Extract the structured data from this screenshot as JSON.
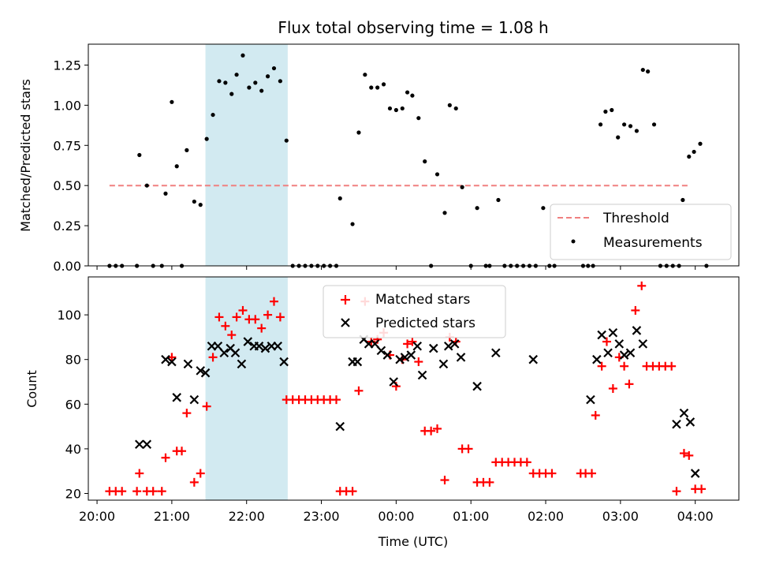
{
  "chart_data": [
    {
      "type": "scatter",
      "title": "Flux total observing time = 1.08 h",
      "xlabel": "",
      "ylabel": "Matched/Predicted stars",
      "ylim": [
        0,
        1.38
      ],
      "yticks": [
        "0.00",
        "0.25",
        "0.50",
        "0.75",
        "1.00",
        "1.25"
      ],
      "ytick_values": [
        0,
        0.25,
        0.5,
        0.75,
        1.0,
        1.25
      ],
      "threshold": {
        "name": "Threshold",
        "value": 0.5,
        "x_range": [
          "20:10",
          "03:55"
        ],
        "color": "#f08080"
      },
      "highlight_span": {
        "x_range": [
          "21:27",
          "22:33"
        ],
        "color": "#add8e6"
      },
      "legend": {
        "placement": "lower-right",
        "entries": [
          "Threshold",
          "Measurements"
        ]
      },
      "series": [
        {
          "name": "Measurements",
          "color": "#000000",
          "marker": "dot",
          "points": [
            [
              "20:10",
              0
            ],
            [
              "20:15",
              0
            ],
            [
              "20:20",
              0
            ],
            [
              "20:32",
              0
            ],
            [
              "20:34",
              0.69
            ],
            [
              "20:40",
              0.5
            ],
            [
              "20:45",
              0
            ],
            [
              "20:52",
              0
            ],
            [
              "20:55",
              0.45
            ],
            [
              "21:00",
              1.02
            ],
            [
              "21:04",
              0.62
            ],
            [
              "21:08",
              0
            ],
            [
              "21:12",
              0.72
            ],
            [
              "21:18",
              0.4
            ],
            [
              "21:23",
              0.38
            ],
            [
              "21:28",
              0.79
            ],
            [
              "21:33",
              0.94
            ],
            [
              "21:38",
              1.15
            ],
            [
              "21:43",
              1.14
            ],
            [
              "21:48",
              1.07
            ],
            [
              "21:52",
              1.19
            ],
            [
              "21:57",
              1.31
            ],
            [
              "22:02",
              1.11
            ],
            [
              "22:07",
              1.14
            ],
            [
              "22:12",
              1.09
            ],
            [
              "22:17",
              1.18
            ],
            [
              "22:22",
              1.23
            ],
            [
              "22:27",
              1.15
            ],
            [
              "22:32",
              0.78
            ],
            [
              "22:37",
              0
            ],
            [
              "22:42",
              0
            ],
            [
              "22:47",
              0
            ],
            [
              "22:52",
              0
            ],
            [
              "22:57",
              0
            ],
            [
              "23:02",
              0
            ],
            [
              "23:07",
              0
            ],
            [
              "23:12",
              0
            ],
            [
              "23:15",
              0.42
            ],
            [
              "23:25",
              0.26
            ],
            [
              "23:30",
              0.83
            ],
            [
              "23:35",
              1.19
            ],
            [
              "23:40",
              1.11
            ],
            [
              "23:45",
              1.11
            ],
            [
              "23:50",
              1.13
            ],
            [
              "23:55",
              0.98
            ],
            [
              "00:00",
              0.97
            ],
            [
              "00:05",
              0.98
            ],
            [
              "00:09",
              1.08
            ],
            [
              "00:13",
              1.06
            ],
            [
              "00:18",
              0.92
            ],
            [
              "00:23",
              0.65
            ],
            [
              "00:28",
              0
            ],
            [
              "00:33",
              0.57
            ],
            [
              "00:39",
              0.33
            ],
            [
              "00:43",
              1.0
            ],
            [
              "00:48",
              0.98
            ],
            [
              "00:53",
              0.49
            ],
            [
              "01:00",
              0
            ],
            [
              "01:05",
              0.36
            ],
            [
              "01:12",
              0
            ],
            [
              "01:15",
              0
            ],
            [
              "01:22",
              0.41
            ],
            [
              "01:27",
              0
            ],
            [
              "01:32",
              0
            ],
            [
              "01:37",
              0
            ],
            [
              "01:42",
              0
            ],
            [
              "01:47",
              0
            ],
            [
              "01:52",
              0
            ],
            [
              "01:58",
              0.36
            ],
            [
              "02:03",
              0
            ],
            [
              "02:07",
              0
            ],
            [
              "02:30",
              0
            ],
            [
              "02:34",
              0
            ],
            [
              "02:38",
              0
            ],
            [
              "02:44",
              0.88
            ],
            [
              "02:48",
              0.96
            ],
            [
              "02:53",
              0.97
            ],
            [
              "02:58",
              0.8
            ],
            [
              "03:03",
              0.88
            ],
            [
              "03:08",
              0.87
            ],
            [
              "03:13",
              0.84
            ],
            [
              "03:18",
              1.22
            ],
            [
              "03:22",
              1.21
            ],
            [
              "03:27",
              0.88
            ],
            [
              "03:32",
              0
            ],
            [
              "03:37",
              0
            ],
            [
              "03:42",
              0
            ],
            [
              "03:47",
              0
            ],
            [
              "03:50",
              0.41
            ],
            [
              "03:55",
              0.68
            ],
            [
              "03:59",
              0.71
            ],
            [
              "04:04",
              0.76
            ],
            [
              "04:09",
              0
            ]
          ]
        }
      ]
    },
    {
      "type": "scatter",
      "title": "",
      "xlabel": "Time (UTC)",
      "ylabel": "Count",
      "ylim": [
        17,
        117
      ],
      "yticks": [
        "20",
        "40",
        "60",
        "80",
        "100"
      ],
      "ytick_values": [
        20,
        40,
        60,
        80,
        100
      ],
      "xticks": [
        "20:00",
        "21:00",
        "22:00",
        "23:00",
        "00:00",
        "01:00",
        "02:00",
        "03:00",
        "04:00"
      ],
      "x_range": [
        "19:53",
        "04:35"
      ],
      "highlight_span": {
        "x_range": [
          "21:27",
          "22:33"
        ],
        "color": "#add8e6"
      },
      "legend": {
        "placement": "upper-center",
        "entries": [
          "Matched stars",
          "Predicted stars"
        ]
      },
      "series": [
        {
          "name": "Matched stars",
          "color": "#ff0000",
          "marker": "plus",
          "points": [
            [
              "20:10",
              21
            ],
            [
              "20:15",
              21
            ],
            [
              "20:20",
              21
            ],
            [
              "20:32",
              21
            ],
            [
              "20:34",
              29
            ],
            [
              "20:40",
              21
            ],
            [
              "20:45",
              21
            ],
            [
              "20:52",
              21
            ],
            [
              "20:55",
              36
            ],
            [
              "21:00",
              81
            ],
            [
              "21:04",
              39
            ],
            [
              "21:08",
              39
            ],
            [
              "21:12",
              56
            ],
            [
              "21:18",
              25
            ],
            [
              "21:23",
              29
            ],
            [
              "21:28",
              59
            ],
            [
              "21:33",
              81
            ],
            [
              "21:38",
              99
            ],
            [
              "21:43",
              95
            ],
            [
              "21:48",
              91
            ],
            [
              "21:52",
              99
            ],
            [
              "21:57",
              102
            ],
            [
              "22:02",
              98
            ],
            [
              "22:07",
              98
            ],
            [
              "22:12",
              94
            ],
            [
              "22:17",
              100
            ],
            [
              "22:22",
              106
            ],
            [
              "22:27",
              99
            ],
            [
              "22:32",
              62
            ],
            [
              "22:37",
              62
            ],
            [
              "22:42",
              62
            ],
            [
              "22:47",
              62
            ],
            [
              "22:52",
              62
            ],
            [
              "22:57",
              62
            ],
            [
              "23:02",
              62
            ],
            [
              "23:07",
              62
            ],
            [
              "23:12",
              62
            ],
            [
              "23:15",
              21
            ],
            [
              "23:20",
              21
            ],
            [
              "23:25",
              21
            ],
            [
              "23:30",
              66
            ],
            [
              "23:35",
              106
            ],
            [
              "23:40",
              88
            ],
            [
              "23:45",
              89
            ],
            [
              "23:50",
              92
            ],
            [
              "23:55",
              82
            ],
            [
              "00:00",
              68
            ],
            [
              "00:05",
              80
            ],
            [
              "00:09",
              87
            ],
            [
              "00:13",
              88
            ],
            [
              "00:18",
              79
            ],
            [
              "00:23",
              48
            ],
            [
              "00:28",
              48
            ],
            [
              "00:33",
              49
            ],
            [
              "00:39",
              26
            ],
            [
              "00:43",
              90
            ],
            [
              "00:48",
              88
            ],
            [
              "00:53",
              40
            ],
            [
              "00:58",
              40
            ],
            [
              "01:05",
              25
            ],
            [
              "01:10",
              25
            ],
            [
              "01:15",
              25
            ],
            [
              "01:20",
              34
            ],
            [
              "01:25",
              34
            ],
            [
              "01:30",
              34
            ],
            [
              "01:35",
              34
            ],
            [
              "01:40",
              34
            ],
            [
              "01:45",
              34
            ],
            [
              "01:50",
              29
            ],
            [
              "01:55",
              29
            ],
            [
              "02:00",
              29
            ],
            [
              "02:05",
              29
            ],
            [
              "02:28",
              29
            ],
            [
              "02:32",
              29
            ],
            [
              "02:37",
              29
            ],
            [
              "02:40",
              55
            ],
            [
              "02:45",
              77
            ],
            [
              "02:49",
              88
            ],
            [
              "02:54",
              67
            ],
            [
              "02:59",
              81
            ],
            [
              "03:03",
              77
            ],
            [
              "03:07",
              69
            ],
            [
              "03:12",
              102
            ],
            [
              "03:17",
              113
            ],
            [
              "03:21",
              77
            ],
            [
              "03:26",
              77
            ],
            [
              "03:31",
              77
            ],
            [
              "03:36",
              77
            ],
            [
              "03:41",
              77
            ],
            [
              "03:45",
              21
            ],
            [
              "03:51",
              38
            ],
            [
              "03:55",
              37
            ],
            [
              "04:00",
              22
            ],
            [
              "04:05",
              22
            ]
          ]
        },
        {
          "name": "Predicted stars",
          "color": "#000000",
          "marker": "x",
          "points": [
            [
              "20:34",
              42
            ],
            [
              "20:40",
              42
            ],
            [
              "20:55",
              80
            ],
            [
              "21:00",
              79
            ],
            [
              "21:04",
              63
            ],
            [
              "21:13",
              78
            ],
            [
              "21:18",
              62
            ],
            [
              "21:23",
              75
            ],
            [
              "21:27",
              74
            ],
            [
              "21:32",
              86
            ],
            [
              "21:37",
              86
            ],
            [
              "21:42",
              83
            ],
            [
              "21:47",
              85
            ],
            [
              "21:51",
              83
            ],
            [
              "21:56",
              78
            ],
            [
              "22:01",
              88
            ],
            [
              "22:06",
              86
            ],
            [
              "22:10",
              86
            ],
            [
              "22:15",
              85
            ],
            [
              "22:20",
              86
            ],
            [
              "22:25",
              86
            ],
            [
              "22:30",
              79
            ],
            [
              "23:15",
              50
            ],
            [
              "23:25",
              79
            ],
            [
              "23:29",
              79
            ],
            [
              "23:34",
              89
            ],
            [
              "23:38",
              87
            ],
            [
              "23:43",
              87
            ],
            [
              "23:48",
              84
            ],
            [
              "23:53",
              82
            ],
            [
              "23:58",
              70
            ],
            [
              "00:03",
              80
            ],
            [
              "00:07",
              81
            ],
            [
              "00:12",
              82
            ],
            [
              "00:17",
              86
            ],
            [
              "00:21",
              73
            ],
            [
              "00:30",
              85
            ],
            [
              "00:38",
              78
            ],
            [
              "00:42",
              86
            ],
            [
              "00:47",
              87
            ],
            [
              "00:52",
              81
            ],
            [
              "01:05",
              68
            ],
            [
              "01:20",
              83
            ],
            [
              "01:50",
              80
            ],
            [
              "02:36",
              62
            ],
            [
              "02:41",
              80
            ],
            [
              "02:45",
              91
            ],
            [
              "02:50",
              83
            ],
            [
              "02:54",
              92
            ],
            [
              "02:59",
              87
            ],
            [
              "03:03",
              82
            ],
            [
              "03:08",
              83
            ],
            [
              "03:13",
              93
            ],
            [
              "03:18",
              87
            ],
            [
              "03:45",
              51
            ],
            [
              "03:51",
              56
            ],
            [
              "03:56",
              52
            ],
            [
              "04:00",
              29
            ]
          ]
        }
      ]
    }
  ]
}
